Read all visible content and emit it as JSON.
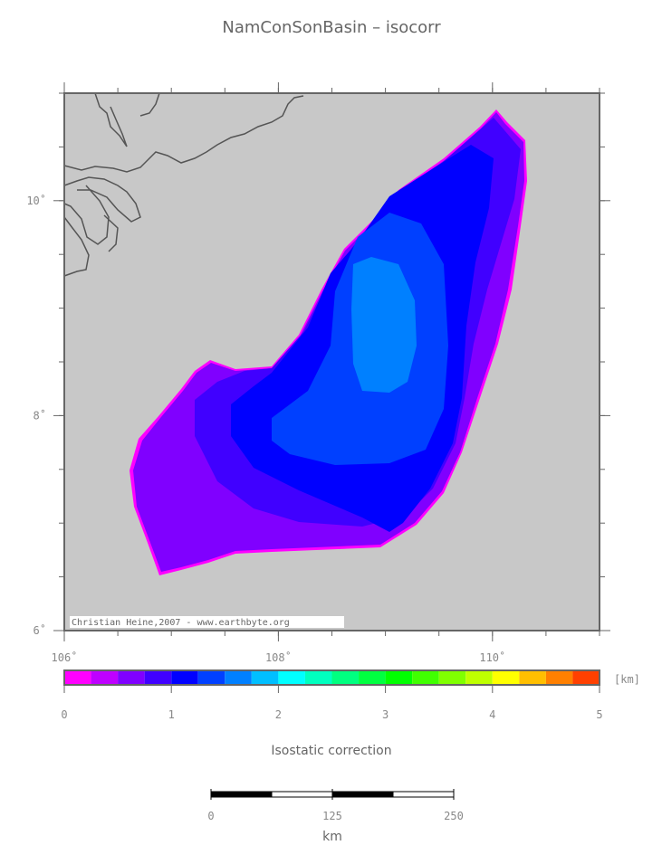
{
  "title": "NamConSonBasin – isocorr",
  "map": {
    "lon_range": [
      106,
      111
    ],
    "lat_range": [
      6,
      11
    ],
    "lon_ticks": [
      {
        "value": 106,
        "label": "106˚"
      },
      {
        "value": 108,
        "label": "108˚"
      },
      {
        "value": 110,
        "label": "110˚"
      }
    ],
    "lat_ticks": [
      {
        "value": 6,
        "label": "6˚"
      },
      {
        "value": 8,
        "label": "8˚"
      },
      {
        "value": 10,
        "label": "10˚"
      }
    ],
    "credit": "Christian Heine,2007 - www.earthbyte.org"
  },
  "colorbar": {
    "range": [
      0,
      5
    ],
    "ticks": [
      0,
      1,
      2,
      3,
      4,
      5
    ],
    "unit": "[km]",
    "label": "Isostatic correction",
    "colors": [
      "#ff00ff",
      "#bf00ff",
      "#8000ff",
      "#4000ff",
      "#0000ff",
      "#0040ff",
      "#0080ff",
      "#00bfff",
      "#00ffff",
      "#00ffbf",
      "#00ff80",
      "#00ff40",
      "#00ff00",
      "#40ff00",
      "#80ff00",
      "#bfff00",
      "#ffff00",
      "#ffbf00",
      "#ff8000",
      "#ff4000"
    ]
  },
  "scalebar": {
    "range": [
      0,
      250
    ],
    "ticks": [
      0,
      125,
      250
    ],
    "unit": "km"
  }
}
